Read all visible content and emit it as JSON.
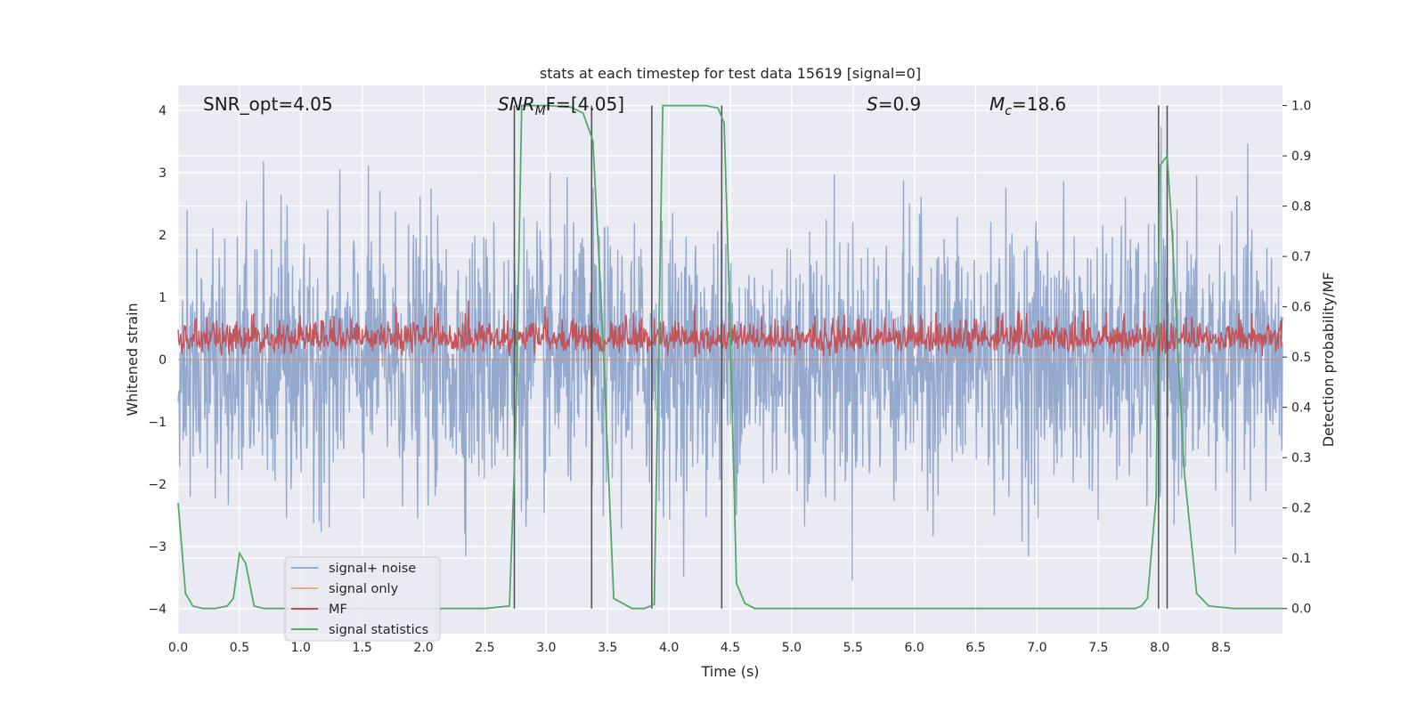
{
  "chart_data": {
    "type": "line",
    "title": "stats at each timestep for test data 15619 [signal=0]",
    "xlabel": "Time (s)",
    "ylabel_left": "Whitened strain",
    "ylabel_right": "Detection probability/MF",
    "xlim": [
      0,
      9
    ],
    "ylim_left": [
      -4.4,
      4.4
    ],
    "ylim_right": [
      -0.05,
      1.04
    ],
    "x_ticks": [
      0,
      0.5,
      1,
      1.5,
      2,
      2.5,
      3,
      3.5,
      4,
      4.5,
      5,
      5.5,
      6,
      6.5,
      7,
      7.5,
      8,
      8.5
    ],
    "x_tick_labels": [
      "0.0",
      "0.5",
      "1.0",
      "1.5",
      "2.0",
      "2.5",
      "3.0",
      "3.5",
      "4.0",
      "4.5",
      "5.0",
      "5.5",
      "6.0",
      "6.5",
      "7.0",
      "7.5",
      "8.0",
      "8.5"
    ],
    "y_left_ticks": [
      4,
      3,
      2,
      1,
      0,
      -1,
      -2,
      -3,
      -4
    ],
    "y_left_tick_labels": [
      "4",
      "3",
      "2",
      "1",
      "0",
      "−1",
      "−2",
      "−3",
      "−4"
    ],
    "y_right_ticks": [
      1.0,
      0.9,
      0.8,
      0.7,
      0.6,
      0.5,
      0.4,
      0.3,
      0.2,
      0.1,
      0.0
    ],
    "y_right_tick_labels": [
      "1.0",
      "0.9",
      "0.8",
      "0.7",
      "0.6",
      "0.5",
      "0.4",
      "0.3",
      "0.2",
      "0.1",
      "0.0"
    ],
    "grid": true,
    "legend_position": "lower-left",
    "annotations": {
      "snr_opt": "SNR_opt=4.05",
      "snr_mf_base": "SNR",
      "snr_mf_sub": "M",
      "snr_mf_rest": "F=[4.05]",
      "s_italic": "S",
      "s_rest": "=0.9",
      "mc_base": "M",
      "mc_sub": "c",
      "mc_rest": "=18.6"
    },
    "series": [
      {
        "name": "signal+ noise",
        "color": "#4c72b0",
        "axis": "left",
        "note_envelope_max": 4.0,
        "note_envelope_min": -3.6
      },
      {
        "name": "signal only",
        "color": "#dd8452",
        "axis": "left",
        "values_constant": 0
      },
      {
        "name": "MF",
        "color": "#c44e52",
        "axis": "left",
        "range": [
          0.05,
          0.95
        ]
      },
      {
        "name": "signal statistics",
        "color": "#55a868",
        "axis": "right",
        "x": [
          0.0,
          0.06,
          0.12,
          0.2,
          0.3,
          0.4,
          0.45,
          0.5,
          0.55,
          0.62,
          0.7,
          1.0,
          1.5,
          2.0,
          2.5,
          2.7,
          2.75,
          2.8,
          2.85,
          3.0,
          3.2,
          3.3,
          3.38,
          3.45,
          3.55,
          3.7,
          3.8,
          3.88,
          3.95,
          4.1,
          4.3,
          4.4,
          4.45,
          4.5,
          4.55,
          4.62,
          4.7,
          4.8,
          5.0,
          6.0,
          7.0,
          7.8,
          7.85,
          7.9,
          7.97,
          8.0,
          8.06,
          8.1,
          8.15,
          8.2,
          8.25,
          8.3,
          8.4,
          8.6,
          9.0
        ],
        "values": [
          0.21,
          0.03,
          0.005,
          0.0,
          0.0,
          0.005,
          0.02,
          0.11,
          0.09,
          0.005,
          0.0,
          0.0,
          0.0,
          0.0,
          0.0,
          0.005,
          0.35,
          1.0,
          1.0,
          1.0,
          0.997,
          0.985,
          0.93,
          0.6,
          0.02,
          0.0,
          0.0,
          0.008,
          1.0,
          1.0,
          1.0,
          0.995,
          0.965,
          0.55,
          0.05,
          0.01,
          0.0,
          0.0,
          0.0,
          0.0,
          0.0,
          0.0,
          0.005,
          0.02,
          0.22,
          0.88,
          0.9,
          0.75,
          0.5,
          0.27,
          0.15,
          0.03,
          0.005,
          0.0,
          0.0
        ]
      },
      {
        "name": "",
        "color": "#555555",
        "type": "vertical-lines",
        "x": [
          2.74,
          3.37,
          3.86,
          4.43,
          7.99,
          8.06
        ]
      }
    ],
    "legend": [
      "signal+ noise",
      "signal only",
      "MF",
      "signal statistics"
    ]
  }
}
